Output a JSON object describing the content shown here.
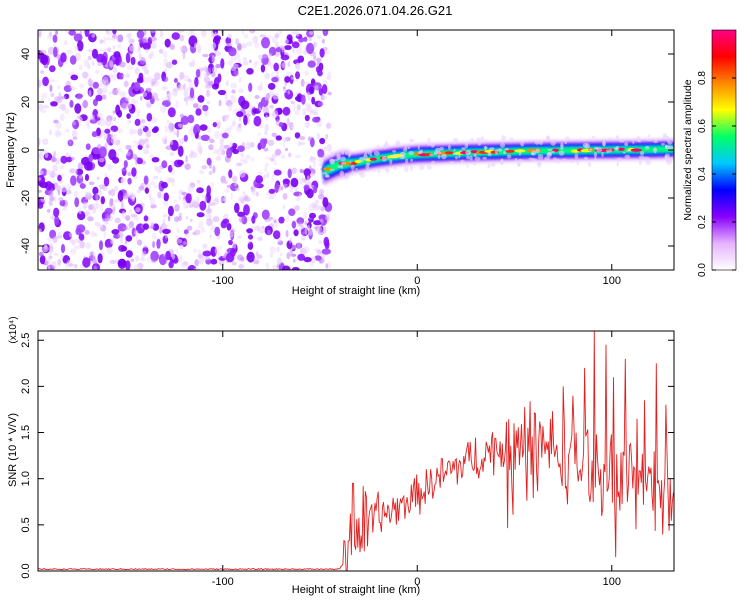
{
  "title": "C2E1.2026.071.04.26.G21",
  "chart_data": [
    {
      "type": "heatmap",
      "xlabel": "Height of straight line (km)",
      "ylabel": "Frequency (Hz)",
      "xlim": [
        -195,
        132
      ],
      "ylim": [
        -50,
        50
      ],
      "xticks": [
        -100,
        0,
        100
      ],
      "yticks": [
        -40,
        -20,
        0,
        20,
        40
      ],
      "noise_region_x": [
        -195,
        -48
      ],
      "ridge": {
        "x": [
          -48,
          -40,
          -30,
          -20,
          -10,
          0,
          20,
          40,
          60,
          80,
          100,
          120,
          132
        ],
        "freq": [
          -9,
          -6,
          -5,
          -3.5,
          -2.5,
          -1.8,
          -1.2,
          -0.8,
          -0.4,
          -0.2,
          0,
          0.2,
          0.4
        ]
      },
      "colorbar": {
        "label": "Normalized spectral amplitude",
        "range": [
          0,
          1
        ],
        "ticks": [
          "0.0",
          "0.2",
          "0.4",
          "0.6",
          "0.8"
        ],
        "tick_values": [
          0,
          0.2,
          0.4,
          0.6,
          0.8
        ],
        "colors": [
          "#ffffff",
          "#e6b3ff",
          "#8800ff",
          "#0000ff",
          "#00c8ff",
          "#00ff66",
          "#ffff00",
          "#ff8800",
          "#ff0000",
          "#ff0088"
        ]
      }
    },
    {
      "type": "line",
      "xlabel": "Height of straight line (km)",
      "ylabel": "SNR (10 * V/V)",
      "scale_label": "(x10⁴)",
      "xlim": [
        -195,
        132
      ],
      "ylim": [
        0,
        2.6
      ],
      "xticks": [
        -100,
        0,
        100
      ],
      "yticks": [
        0,
        0.5,
        1,
        1.5,
        2,
        2.5
      ],
      "ytick_labels": [
        "0.0",
        "0.5",
        "1.0",
        "1.5",
        "2.0",
        "2.5"
      ],
      "color": "#e02020",
      "envelope": {
        "x": [
          -195,
          -40,
          -36,
          -34,
          -30,
          -20,
          -10,
          0,
          10,
          20,
          30,
          40,
          50,
          60,
          70,
          80,
          90,
          100,
          110,
          120,
          132
        ],
        "y": [
          0.02,
          0.02,
          0.15,
          0.4,
          0.45,
          0.6,
          0.7,
          0.85,
          1.0,
          1.15,
          1.25,
          1.35,
          1.4,
          1.4,
          1.35,
          1.25,
          1.2,
          1.05,
          1.0,
          0.95,
          0.9
        ]
      },
      "peaks": [
        {
          "x": -33,
          "y": 0.95
        },
        {
          "x": -28,
          "y": 0.92
        },
        {
          "x": -21,
          "y": 0.65
        },
        {
          "x": 50,
          "y": 1.6
        },
        {
          "x": 57,
          "y": 1.55
        },
        {
          "x": 63,
          "y": 1.62
        },
        {
          "x": 75,
          "y": 2.0
        },
        {
          "x": 80,
          "y": 1.9
        },
        {
          "x": 86,
          "y": 2.2
        },
        {
          "x": 91,
          "y": 2.6
        },
        {
          "x": 97,
          "y": 2.45
        },
        {
          "x": 101,
          "y": 2.1
        },
        {
          "x": 107,
          "y": 2.3
        },
        {
          "x": 113,
          "y": 1.65
        },
        {
          "x": 117,
          "y": 1.85
        },
        {
          "x": 123,
          "y": 2.25
        },
        {
          "x": 128,
          "y": 1.8
        }
      ]
    }
  ]
}
